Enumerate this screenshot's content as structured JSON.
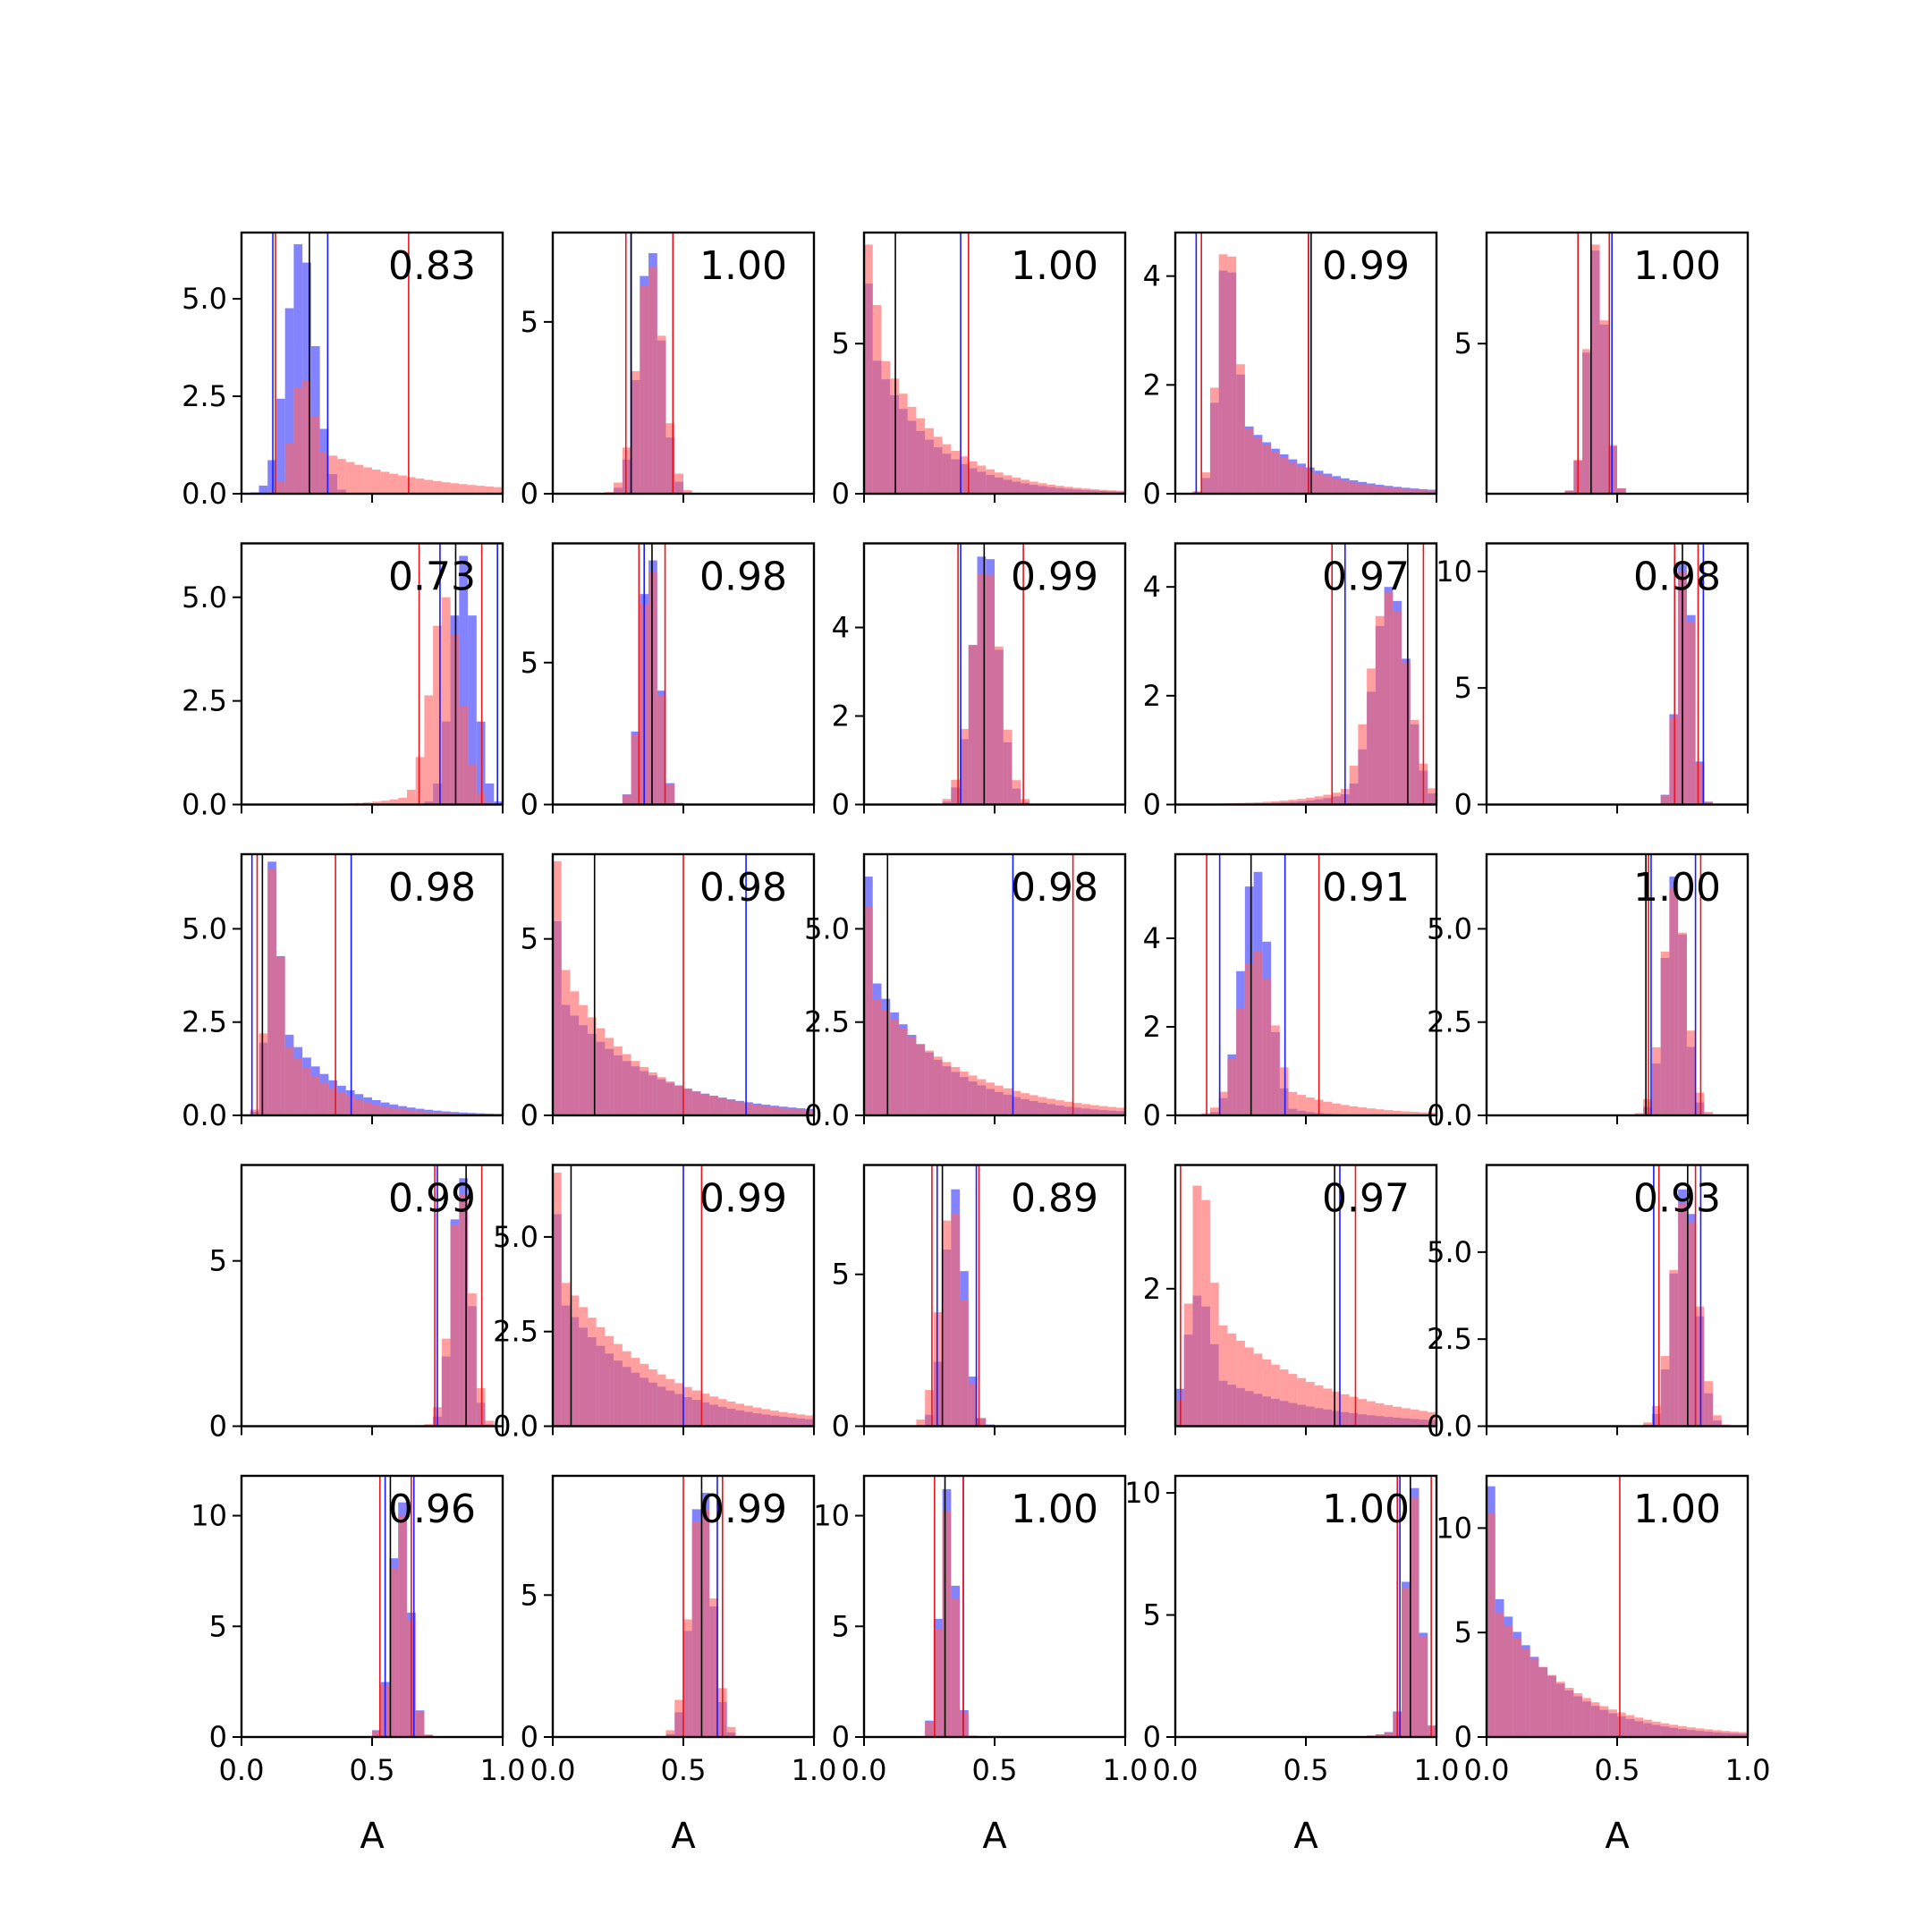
{
  "figure": {
    "xlabel": "A",
    "colors": {
      "blue_hist": "#6464ff",
      "red_hist": "#ff6464",
      "overlap": "#c03c7a",
      "blue_line": "#1a1aff",
      "red_line": "#e8141e",
      "black_line": "#000000"
    },
    "x_ticks": [
      "0.0",
      "0.5",
      "1.0"
    ]
  },
  "chart_data": [
    {
      "type": "histogram",
      "score": "0.83",
      "xlim": [
        0,
        1
      ],
      "ylim": [
        0,
        6.7
      ],
      "yticks": [
        "0.0",
        "2.5",
        "5.0"
      ],
      "ytick_values": [
        0,
        2.5,
        5
      ],
      "blue": {
        "center": 0.22,
        "sd": 0.055,
        "peak": 6.4,
        "skew": 0.2,
        "lines": [
          0.12,
          0.33
        ]
      },
      "red": {
        "center": 0.2,
        "sd": 0.07,
        "peak": 2.9,
        "skew": 2.6,
        "lines": [
          0.13,
          0.64
        ]
      },
      "black_lines": [
        0.26
      ]
    },
    {
      "type": "histogram",
      "score": "1.00",
      "xlim": [
        0,
        1
      ],
      "ylim": [
        0,
        7.6
      ],
      "yticks": [
        "0",
        "5"
      ],
      "ytick_values": [
        0,
        5
      ],
      "blue": {
        "center": 0.37,
        "sd": 0.045,
        "peak": 7.0,
        "skew": 0.1,
        "lines": [
          0.3,
          0.46
        ]
      },
      "red": {
        "center": 0.37,
        "sd": 0.05,
        "peak": 6.6,
        "skew": 0.1,
        "lines": [
          0.28,
          0.46
        ]
      },
      "black_lines": [
        0.3
      ]
    },
    {
      "type": "histogram",
      "score": "1.00",
      "xlim": [
        0,
        1
      ],
      "ylim": [
        0,
        8.7
      ],
      "yticks": [
        "0",
        "5"
      ],
      "ytick_values": [
        0,
        5
      ],
      "blue": {
        "center": 0.01,
        "sd": 0.03,
        "peak": 7.0,
        "skew": 4.0,
        "lines": [
          0.37
        ]
      },
      "red": {
        "center": 0.01,
        "sd": 0.035,
        "peak": 8.3,
        "skew": 3.6,
        "lines": [
          0.4
        ]
      },
      "black_lines": [
        0.12
      ]
    },
    {
      "type": "histogram",
      "score": "0.99",
      "xlim": [
        0,
        1
      ],
      "ylim": [
        0,
        4.8
      ],
      "yticks": [
        "0",
        "2",
        "4"
      ],
      "ytick_values": [
        0,
        2,
        4
      ],
      "blue": {
        "center": 0.17,
        "sd": 0.055,
        "peak": 4.1,
        "skew": 2.2,
        "lines": [
          0.08,
          0.51
        ]
      },
      "red": {
        "center": 0.17,
        "sd": 0.055,
        "peak": 4.4,
        "skew": 2.0,
        "lines": [
          0.1,
          0.51
        ]
      },
      "black_lines": [
        0.52
      ]
    },
    {
      "type": "histogram",
      "score": "1.00",
      "xlim": [
        0,
        1
      ],
      "ylim": [
        0,
        8.7
      ],
      "yticks": [
        "5"
      ],
      "ytick_values": [
        5
      ],
      "blue": {
        "center": 0.42,
        "sd": 0.035,
        "peak": 8.1,
        "skew": 0.0,
        "lines": [
          0.48
        ]
      },
      "red": {
        "center": 0.42,
        "sd": 0.035,
        "peak": 8.3,
        "skew": 0.0,
        "lines": [
          0.35,
          0.47
        ]
      },
      "black_lines": [
        0.4
      ]
    },
    {
      "type": "histogram",
      "score": "0.73",
      "xlim": [
        0,
        1
      ],
      "ylim": [
        0,
        6.3
      ],
      "yticks": [
        "0.0",
        "2.5",
        "5.0"
      ],
      "ytick_values": [
        0,
        2.5,
        5
      ],
      "blue": {
        "center": 0.85,
        "sd": 0.045,
        "peak": 6.0,
        "skew": 0.0,
        "lines": [
          0.76,
          0.98
        ]
      },
      "red": {
        "center": 0.8,
        "sd": 0.06,
        "peak": 5.0,
        "skew": -0.6,
        "lines": [
          0.68,
          0.92
        ]
      },
      "black_lines": [
        0.82
      ]
    },
    {
      "type": "histogram",
      "score": "0.98",
      "xlim": [
        0,
        1
      ],
      "ylim": [
        0,
        9.2
      ],
      "yticks": [
        "0",
        "5"
      ],
      "ytick_values": [
        0,
        5
      ],
      "blue": {
        "center": 0.37,
        "sd": 0.035,
        "peak": 8.6,
        "skew": 0.1,
        "lines": [
          0.35
        ]
      },
      "red": {
        "center": 0.37,
        "sd": 0.035,
        "peak": 8.2,
        "skew": 0.1,
        "lines": [
          0.33,
          0.43
        ]
      },
      "black_lines": [
        0.38
      ]
    },
    {
      "type": "histogram",
      "score": "0.99",
      "xlim": [
        0,
        1
      ],
      "ylim": [
        0,
        5.9
      ],
      "yticks": [
        "0",
        "2",
        "4"
      ],
      "ytick_values": [
        0,
        2,
        4
      ],
      "blue": {
        "center": 0.46,
        "sd": 0.05,
        "peak": 5.6,
        "skew": 0.2,
        "lines": [
          0.37
        ]
      },
      "red": {
        "center": 0.46,
        "sd": 0.055,
        "peak": 5.2,
        "skew": 0.2,
        "lines": [
          0.36,
          0.61
        ]
      },
      "black_lines": [
        0.46
      ]
    },
    {
      "type": "histogram",
      "score": "0.97",
      "xlim": [
        0,
        1
      ],
      "ylim": [
        0,
        4.8
      ],
      "yticks": [
        "0",
        "2",
        "4"
      ],
      "ytick_values": [
        0,
        2,
        4
      ],
      "blue": {
        "center": 0.85,
        "sd": 0.07,
        "peak": 4.0,
        "skew": -0.7,
        "lines": [
          0.65
        ]
      },
      "red": {
        "center": 0.85,
        "sd": 0.08,
        "peak": 3.9,
        "skew": -0.8,
        "lines": [
          0.6,
          0.95
        ]
      },
      "black_lines": [
        0.89
      ]
    },
    {
      "type": "histogram",
      "score": "0.98",
      "xlim": [
        0,
        1
      ],
      "ylim": [
        0,
        11.2
      ],
      "yticks": [
        "0",
        "5",
        "10"
      ],
      "ytick_values": [
        0,
        5,
        10
      ],
      "blue": {
        "center": 0.76,
        "sd": 0.03,
        "peak": 10.4,
        "skew": 0.0,
        "lines": [
          0.83
        ]
      },
      "red": {
        "center": 0.76,
        "sd": 0.03,
        "peak": 10.0,
        "skew": 0.0,
        "lines": [
          0.72,
          0.81
        ]
      },
      "black_lines": [
        0.75
      ]
    },
    {
      "type": "histogram",
      "score": "0.98",
      "xlim": [
        0,
        1
      ],
      "ylim": [
        0,
        7.0
      ],
      "yticks": [
        "0.0",
        "2.5",
        "5.0"
      ],
      "ytick_values": [
        0,
        2.5,
        5
      ],
      "blue": {
        "center": 0.1,
        "sd": 0.04,
        "peak": 6.8,
        "skew": 2.5,
        "lines": [
          0.04,
          0.42
        ]
      },
      "red": {
        "center": 0.1,
        "sd": 0.04,
        "peak": 6.6,
        "skew": 2.2,
        "lines": [
          0.06,
          0.36
        ]
      },
      "black_lines": [
        0.08
      ]
    },
    {
      "type": "histogram",
      "score": "0.98",
      "xlim": [
        0,
        1
      ],
      "ylim": [
        0,
        7.4
      ],
      "yticks": [
        "0",
        "5"
      ],
      "ytick_values": [
        0,
        5
      ],
      "blue": {
        "center": 0.0,
        "sd": 0.04,
        "peak": 5.5,
        "skew": 4.5,
        "lines": [
          0.74
        ]
      },
      "red": {
        "center": 0.0,
        "sd": 0.04,
        "peak": 7.2,
        "skew": 3.8,
        "lines": [
          0.5
        ]
      },
      "black_lines": [
        0.16
      ]
    },
    {
      "type": "histogram",
      "score": "0.98",
      "xlim": [
        0,
        1
      ],
      "ylim": [
        0,
        7.0
      ],
      "yticks": [
        "0.0",
        "2.5",
        "5.0"
      ],
      "ytick_values": [
        0,
        2.5,
        5
      ],
      "blue": {
        "center": 0.0,
        "sd": 0.03,
        "peak": 6.4,
        "skew": 5.0,
        "lines": [
          0.57
        ]
      },
      "red": {
        "center": 0.0,
        "sd": 0.035,
        "peak": 5.6,
        "skew": 5.5,
        "lines": [
          0.8
        ]
      },
      "black_lines": [
        0.09
      ]
    },
    {
      "type": "histogram",
      "score": "0.91",
      "xlim": [
        0,
        1
      ],
      "ylim": [
        0,
        5.9
      ],
      "yticks": [
        "0",
        "2",
        "4"
      ],
      "ytick_values": [
        0,
        2,
        4
      ],
      "blue": {
        "center": 0.29,
        "sd": 0.055,
        "peak": 5.5,
        "skew": 0.5,
        "lines": [
          0.17,
          0.42
        ]
      },
      "red": {
        "center": 0.27,
        "sd": 0.08,
        "peak": 3.7,
        "skew": 1.3,
        "lines": [
          0.12,
          0.55
        ]
      },
      "black_lines": [
        0.29
      ]
    },
    {
      "type": "histogram",
      "score": "1.00",
      "xlim": [
        0,
        1
      ],
      "ylim": [
        0,
        7.0
      ],
      "yticks": [
        "0.0",
        "2.5",
        "5.0"
      ],
      "ytick_values": [
        0,
        2.5,
        5
      ],
      "blue": {
        "center": 0.72,
        "sd": 0.04,
        "peak": 6.4,
        "skew": 0.0,
        "lines": [
          0.63,
          0.8
        ]
      },
      "red": {
        "center": 0.72,
        "sd": 0.045,
        "peak": 6.1,
        "skew": 0.0,
        "lines": [
          0.62,
          0.82
        ]
      },
      "black_lines": [
        0.61
      ]
    },
    {
      "type": "histogram",
      "score": "0.99",
      "xlim": [
        0,
        1
      ],
      "ylim": [
        0,
        7.9
      ],
      "yticks": [
        "0",
        "5"
      ],
      "ytick_values": [
        0,
        5
      ],
      "blue": {
        "center": 0.84,
        "sd": 0.035,
        "peak": 7.5,
        "skew": 0.0,
        "lines": [
          0.75
        ]
      },
      "red": {
        "center": 0.84,
        "sd": 0.04,
        "peak": 7.0,
        "skew": 0.0,
        "lines": [
          0.74,
          0.92
        ]
      },
      "black_lines": [
        0.86
      ]
    },
    {
      "type": "histogram",
      "score": "0.99",
      "xlim": [
        0,
        1
      ],
      "ylim": [
        0,
        6.9
      ],
      "yticks": [
        "0.0",
        "2.5",
        "5.0"
      ],
      "ytick_values": [
        0,
        2.5,
        5
      ],
      "blue": {
        "center": 0.0,
        "sd": 0.04,
        "peak": 5.6,
        "skew": 4.5,
        "lines": [
          0.5
        ]
      },
      "red": {
        "center": 0.0,
        "sd": 0.04,
        "peak": 6.7,
        "skew": 5.0,
        "lines": [
          0.57
        ]
      },
      "black_lines": [
        0.07
      ]
    },
    {
      "type": "histogram",
      "score": "0.89",
      "xlim": [
        0,
        1
      ],
      "ylim": [
        0,
        8.6
      ],
      "yticks": [
        "0",
        "5"
      ],
      "ytick_values": [
        0,
        5
      ],
      "blue": {
        "center": 0.34,
        "sd": 0.04,
        "peak": 7.8,
        "skew": 0.3,
        "lines": [
          0.28,
          0.43
        ]
      },
      "red": {
        "center": 0.33,
        "sd": 0.045,
        "peak": 7.0,
        "skew": 0.2,
        "lines": [
          0.26,
          0.44
        ]
      },
      "black_lines": [
        0.3
      ]
    },
    {
      "type": "histogram",
      "score": "0.97",
      "xlim": [
        0,
        1
      ],
      "ylim": [
        0,
        3.8
      ],
      "yticks": [
        "2"
      ],
      "ytick_values": [
        2
      ],
      "blue": {
        "center": 0.05,
        "sd": 0.08,
        "peak": 1.9,
        "skew": 2.5,
        "lines": [
          0.63
        ]
      },
      "red": {
        "center": 0.06,
        "sd": 0.07,
        "peak": 3.5,
        "skew": 3.0,
        "lines": [
          0.02,
          0.69
        ]
      },
      "black_lines": [
        0.61
      ]
    },
    {
      "type": "histogram",
      "score": "0.93",
      "xlim": [
        0,
        1
      ],
      "ylim": [
        0,
        7.5
      ],
      "yticks": [
        "0.0",
        "2.5",
        "5.0"
      ],
      "ytick_values": [
        0,
        2.5,
        5
      ],
      "blue": {
        "center": 0.76,
        "sd": 0.045,
        "peak": 6.8,
        "skew": 0.0,
        "lines": [
          0.64,
          0.82
        ]
      },
      "red": {
        "center": 0.76,
        "sd": 0.05,
        "peak": 6.4,
        "skew": 0.0,
        "lines": [
          0.66,
          0.8
        ]
      },
      "black_lines": [
        0.77
      ]
    },
    {
      "type": "histogram",
      "score": "0.96",
      "xlim": [
        0,
        1
      ],
      "ylim": [
        0,
        11.8
      ],
      "yticks": [
        "0",
        "5",
        "10"
      ],
      "ytick_values": [
        0,
        5,
        10
      ],
      "blue": {
        "center": 0.61,
        "sd": 0.035,
        "peak": 10.6,
        "skew": 0.0,
        "lines": [
          0.55,
          0.66
        ]
      },
      "red": {
        "center": 0.61,
        "sd": 0.035,
        "peak": 10.0,
        "skew": 0.0,
        "lines": [
          0.53,
          0.65
        ]
      },
      "black_lines": [
        0.57
      ]
    },
    {
      "type": "histogram",
      "score": "0.99",
      "xlim": [
        0,
        1
      ],
      "ylim": [
        0,
        9.2
      ],
      "yticks": [
        "0",
        "5"
      ],
      "ytick_values": [
        0,
        5
      ],
      "blue": {
        "center": 0.57,
        "sd": 0.04,
        "peak": 8.6,
        "skew": 0.0,
        "lines": [
          0.63
        ]
      },
      "red": {
        "center": 0.57,
        "sd": 0.045,
        "peak": 8.0,
        "skew": 0.0,
        "lines": [
          0.5,
          0.65
        ]
      },
      "black_lines": [
        0.57
      ]
    },
    {
      "type": "histogram",
      "score": "1.00",
      "xlim": [
        0,
        1
      ],
      "ylim": [
        0,
        11.8
      ],
      "yticks": [
        "0",
        "5",
        "10"
      ],
      "ytick_values": [
        0,
        5,
        10
      ],
      "blue": {
        "center": 0.32,
        "sd": 0.03,
        "peak": 11.2,
        "skew": 0.0,
        "lines": [
          0.38
        ]
      },
      "red": {
        "center": 0.32,
        "sd": 0.03,
        "peak": 10.2,
        "skew": 0.0,
        "lines": [
          0.27,
          0.38
        ]
      },
      "black_lines": [
        0.31
      ]
    },
    {
      "type": "histogram",
      "score": "1.00",
      "xlim": [
        0,
        1
      ],
      "ylim": [
        0,
        10.7
      ],
      "yticks": [
        "0",
        "5",
        "10"
      ],
      "ytick_values": [
        0,
        5,
        10
      ],
      "blue": {
        "center": 0.92,
        "sd": 0.03,
        "peak": 10.2,
        "skew": -0.5,
        "lines": [
          0.86
        ]
      },
      "red": {
        "center": 0.92,
        "sd": 0.03,
        "peak": 9.8,
        "skew": -0.5,
        "lines": [
          0.85,
          0.98
        ]
      },
      "black_lines": [
        0.9
      ]
    },
    {
      "type": "histogram",
      "score": "1.00",
      "xlim": [
        0,
        1
      ],
      "ylim": [
        0,
        12.5
      ],
      "yticks": [
        "0",
        "5",
        "10"
      ],
      "ytick_values": [
        0,
        5,
        10
      ],
      "blue": {
        "center": 0.0,
        "sd": 0.03,
        "peak": 12.0,
        "skew": 4.5,
        "lines": []
      },
      "red": {
        "center": 0.0,
        "sd": 0.035,
        "peak": 10.7,
        "skew": 4.5,
        "lines": [
          0.51
        ]
      },
      "black_lines": []
    }
  ]
}
